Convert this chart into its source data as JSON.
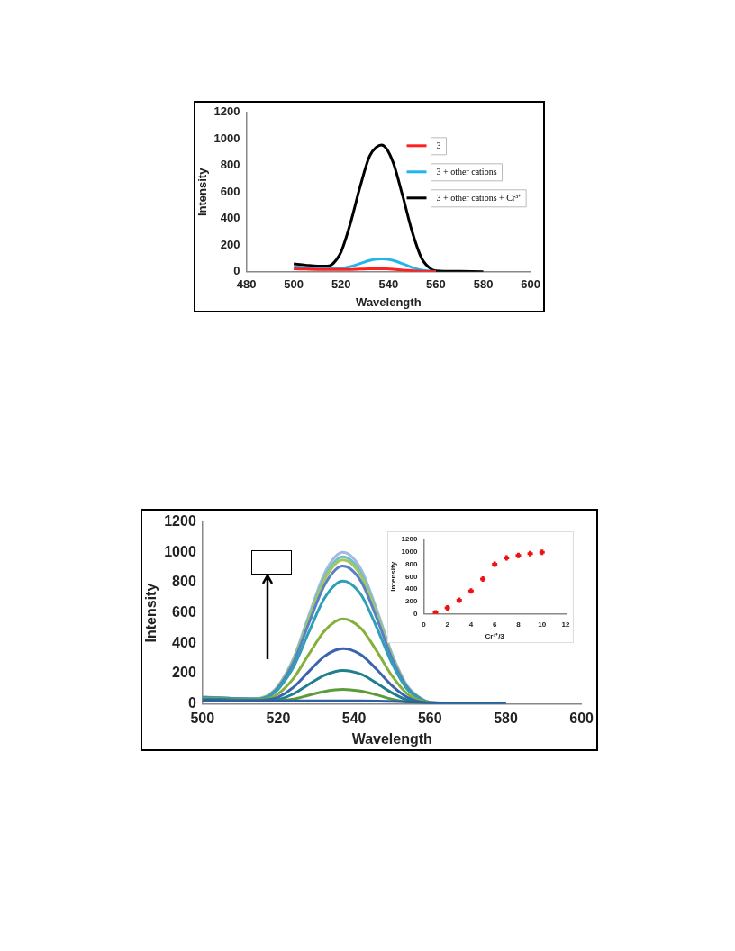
{
  "chart_data": [
    {
      "type": "line",
      "xlabel": "Wavelength",
      "ylabel": "Intensity",
      "legend": "top right",
      "marker": "none",
      "x": [
        500,
        505,
        510,
        515,
        518,
        520,
        524,
        528,
        532,
        535,
        537,
        539,
        542,
        546,
        550,
        554,
        558,
        560,
        570,
        580
      ],
      "xlim": [
        480,
        600
      ],
      "xticks": [
        480,
        500,
        520,
        540,
        560,
        580,
        600
      ],
      "ylim": [
        0,
        1200
      ],
      "yticks": [
        0,
        200,
        400,
        600,
        800,
        1000,
        1200
      ],
      "series": [
        {
          "name": "3",
          "color": "#ff2020",
          "values": [
            22,
            20,
            18,
            17,
            17,
            17,
            18,
            20,
            22,
            23,
            23,
            22,
            19,
            13,
            8,
            4,
            2,
            1,
            null,
            null
          ]
        },
        {
          "name": "3 + other cations",
          "color": "#22b4ee",
          "values": [
            40,
            32,
            25,
            22,
            22,
            25,
            40,
            62,
            85,
            95,
            97,
            95,
            85,
            60,
            32,
            12,
            4,
            2,
            null,
            null
          ]
        },
        {
          "name": "3 + other cations + Cr³⁺",
          "color": "#000000",
          "values": [
            60,
            50,
            42,
            45,
            90,
            150,
            370,
            640,
            870,
            940,
            955,
            930,
            820,
            570,
            300,
            100,
            20,
            8,
            3,
            0
          ]
        }
      ]
    },
    {
      "type": "line",
      "xlabel": "Wavelength",
      "ylabel": "Intensity",
      "marker": "none",
      "x": [
        500,
        505,
        510,
        515,
        518,
        520,
        524,
        528,
        532,
        535,
        537,
        539,
        542,
        546,
        550,
        554,
        558,
        560,
        570,
        580
      ],
      "xlim": [
        500,
        600
      ],
      "xticks": [
        500,
        520,
        540,
        560,
        580,
        600
      ],
      "ylim": [
        0,
        1200
      ],
      "yticks": [
        0,
        200,
        400,
        600,
        800,
        1000,
        1200
      ],
      "series": [
        {
          "color": "#2e5fa3",
          "values": [
            25,
            23,
            20,
            19,
            19,
            20,
            20,
            20,
            20,
            20,
            20,
            20,
            20,
            19,
            17,
            14,
            10,
            8,
            5,
            5
          ]
        },
        {
          "color": "#5b9b3a",
          "values": [
            27,
            25,
            22,
            20,
            18,
            20,
            32,
            57,
            81,
            92,
            95,
            93,
            84,
            59,
            31,
            12,
            4,
            2,
            null,
            null
          ]
        },
        {
          "color": "#1f7f8f",
          "values": [
            29,
            27,
            24,
            22,
            22,
            28,
            66,
            128,
            187,
            213,
            220,
            216,
            194,
            136,
            73,
            26,
            7,
            3,
            1,
            1
          ]
        },
        {
          "color": "#3a64b0",
          "values": [
            32,
            29,
            26,
            25,
            30,
            44,
            110,
            212,
            310,
            354,
            365,
            358,
            321,
            226,
            120,
            44,
            11,
            4,
            2,
            2
          ]
        },
        {
          "color": "#86b03c",
          "values": [
            36,
            33,
            29,
            28,
            40,
            67,
            168,
            325,
            476,
            543,
            560,
            549,
            493,
            347,
            185,
            67,
            17,
            6,
            2,
            2
          ]
        },
        {
          "color": "#2e9fb5",
          "values": [
            41,
            37,
            33,
            32,
            55,
            97,
            243,
            470,
            689,
            786,
            810,
            794,
            713,
            502,
            267,
            97,
            24,
            8,
            3,
            3
          ]
        },
        {
          "color": "#5a7fc8",
          "values": [
            43,
            39,
            35,
            34,
            62,
            109,
            273,
            528,
            774,
            883,
            910,
            892,
            801,
            564,
            300,
            109,
            27,
            9,
            3,
            3
          ]
        },
        {
          "color": "#a6c85a",
          "values": [
            null,
            null,
            null,
            35,
            65,
            114,
            285,
            551,
            808,
            922,
            950,
            931,
            836,
            589,
            314,
            114,
            29,
            10,
            null,
            null
          ]
        },
        {
          "color": "#6cc0d0",
          "values": [
            44,
            40,
            36,
            35,
            66,
            116,
            291,
            563,
            825,
            941,
            970,
            951,
            854,
            601,
            320,
            116,
            29,
            10,
            null,
            null
          ]
        },
        {
          "color": "#a8b8d8",
          "values": [
            45,
            41,
            null,
            null,
            68,
            120,
            300,
            580,
            850,
            970,
            1000,
            980,
            880,
            620,
            330,
            120,
            30,
            10,
            3,
            3
          ]
        }
      ]
    },
    {
      "type": "scatter",
      "xlabel": "Cr³⁺/3",
      "ylabel": "Intensity",
      "marker": "cross",
      "x": [
        1,
        2,
        3,
        4,
        5,
        6,
        7,
        8,
        9,
        10
      ],
      "xlim": [
        0,
        12
      ],
      "xticks": [
        0,
        2,
        4,
        6,
        8,
        10,
        12
      ],
      "ylim": [
        0,
        1200
      ],
      "yticks": [
        0,
        200,
        400,
        600,
        800,
        1000,
        1200
      ],
      "series": [
        {
          "color": "#ee1111",
          "values": [
            20,
            100,
            220,
            370,
            560,
            800,
            900,
            940,
            970,
            990
          ]
        }
      ]
    }
  ]
}
